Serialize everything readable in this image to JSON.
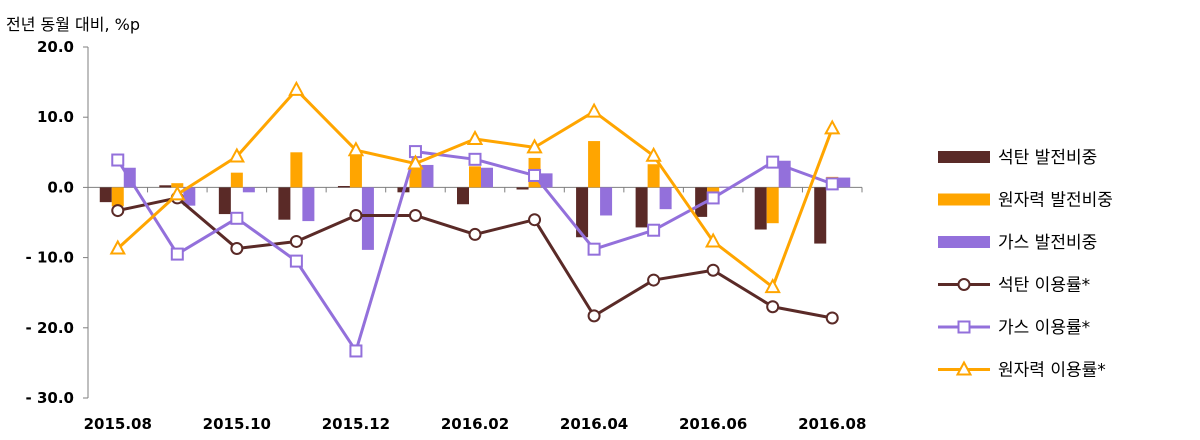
{
  "chart_data": {
    "type": "bar",
    "ylabel": "전년 동월 대비, %p",
    "ylim": [
      -30,
      20
    ],
    "yticks": [
      20,
      10,
      0,
      -10,
      -20,
      -30
    ],
    "ytick_labels": [
      "20.0",
      "10.0",
      "0.0",
      "- 10.0",
      "- 20.0",
      "- 30.0"
    ],
    "categories": [
      "2015.08",
      "2015.09",
      "2015.10",
      "2015.11",
      "2015.12",
      "2016.01",
      "2016.02",
      "2016.03",
      "2016.04",
      "2016.05",
      "2016.06",
      "2016.07",
      "2016.08"
    ],
    "xtick_labels": [
      "2015.08",
      "",
      "2015.10",
      "",
      "2015.12",
      "",
      "2016.02",
      "",
      "2016.04",
      "",
      "2016.06",
      "",
      "2016.08"
    ],
    "bar_series": [
      {
        "name": "석탄 발전비중",
        "color": "#5a2a27",
        "values": [
          -2.1,
          0.3,
          -3.8,
          -4.6,
          0.2,
          -0.7,
          -2.4,
          -0.3,
          -7.1,
          -5.7,
          -4.2,
          -6.0,
          -8.0
        ]
      },
      {
        "name": "원자력 발전비중",
        "color": "#ffa500",
        "values": [
          -2.7,
          0.6,
          2.1,
          5.0,
          4.5,
          2.9,
          3.0,
          4.2,
          6.6,
          3.3,
          -0.8,
          -5.1,
          1.5
        ]
      },
      {
        "name": "가스 발전비중",
        "color": "#9370db",
        "values": [
          2.8,
          -2.6,
          -0.7,
          -4.8,
          -8.9,
          3.2,
          2.8,
          2.0,
          -4.0,
          -3.1,
          0.1,
          3.8,
          1.4
        ]
      }
    ],
    "line_series": [
      {
        "name": "석탄 이용률*",
        "color": "#5a2a27",
        "marker": "circle",
        "values": [
          -3.3,
          -1.5,
          -8.7,
          -7.7,
          -4.0,
          -4.0,
          -6.7,
          -4.6,
          -18.3,
          -13.2,
          -11.8,
          -17.0,
          -18.6
        ]
      },
      {
        "name": "가스 이용률*",
        "color": "#9370db",
        "marker": "square",
        "values": [
          3.9,
          -9.5,
          -4.4,
          -10.5,
          -23.3,
          5.1,
          4.0,
          1.7,
          -8.8,
          -6.1,
          -1.5,
          3.6,
          0.5
        ]
      },
      {
        "name": "원자력 이용률*",
        "color": "#ffa500",
        "marker": "triangle",
        "values": [
          -8.7,
          -1.0,
          4.4,
          13.9,
          5.3,
          3.4,
          6.9,
          5.7,
          10.8,
          4.5,
          -7.7,
          -14.2,
          8.4
        ]
      }
    ],
    "legend_position": "right",
    "grid": false
  }
}
